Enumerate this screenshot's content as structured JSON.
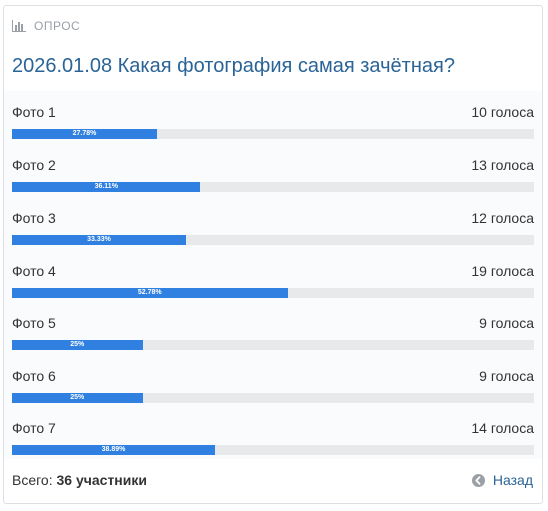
{
  "poll": {
    "header_label": "ОПРОС",
    "title": "2026.01.08 Какая фотография самая зачётная?",
    "options": [
      {
        "label": "Фото 1",
        "votes_text": "10 голоса",
        "percent": 27.78,
        "percent_text": "27.78%"
      },
      {
        "label": "Фото 2",
        "votes_text": "13 голоса",
        "percent": 36.11,
        "percent_text": "36.11%"
      },
      {
        "label": "Фото 3",
        "votes_text": "12 голоса",
        "percent": 33.33,
        "percent_text": "33.33%"
      },
      {
        "label": "Фото 4",
        "votes_text": "19 голоса",
        "percent": 52.78,
        "percent_text": "52.78%"
      },
      {
        "label": "Фото 5",
        "votes_text": "9 голоса",
        "percent": 25,
        "percent_text": "25%"
      },
      {
        "label": "Фото 6",
        "votes_text": "9 голоса",
        "percent": 25,
        "percent_text": "25%"
      },
      {
        "label": "Фото 7",
        "votes_text": "14 голоса",
        "percent": 38.89,
        "percent_text": "38.89%"
      }
    ],
    "total_label": "Всего:",
    "total_value": "36 участники",
    "back_label": "Назад"
  },
  "colors": {
    "bar": "#2f80e0",
    "track": "#e8e9eb",
    "title": "#2a6496",
    "icon": "#9aa0a6"
  },
  "icons": {
    "header": "bar-chart-icon",
    "back": "arrow-left-circle-icon"
  }
}
